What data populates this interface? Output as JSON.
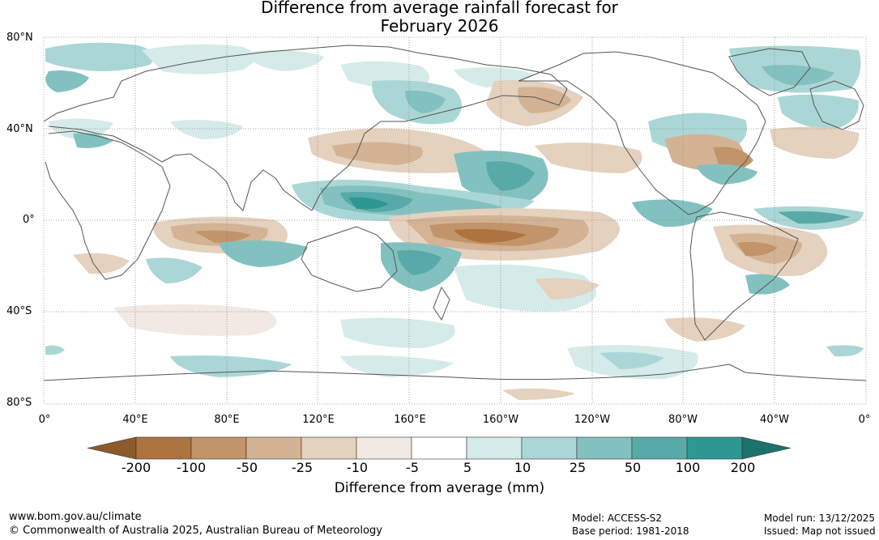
{
  "title": {
    "line1": "Difference from average rainfall forecast for",
    "line2": "February 2026"
  },
  "map": {
    "lat_labels": [
      "80°N",
      "40°N",
      "0°",
      "40°S",
      "80°S"
    ],
    "lon_labels": [
      "0°",
      "40°E",
      "80°E",
      "120°E",
      "160°E",
      "160°W",
      "120°W",
      "80°W",
      "40°W",
      "0°"
    ]
  },
  "colorbar": {
    "title": "Difference from average (mm)",
    "tick_labels": [
      "-200",
      "-100",
      "-50",
      "-25",
      "-10",
      "-5",
      "5",
      "10",
      "25",
      "50",
      "100",
      "200"
    ],
    "colors": [
      "#8c5a2b",
      "#ad7440",
      "#c1946a",
      "#d3b394",
      "#e4d1be",
      "#f1e9e2",
      "#ffffff",
      "#d5ebe9",
      "#aad7d5",
      "#82c1bf",
      "#58aaa8",
      "#2f9792",
      "#1d726d"
    ]
  },
  "footer": {
    "website": "www.bom.gov.au/climate",
    "copyright": "© Commonwealth of Australia 2025, Australian Bureau of Meteorology",
    "model": "Model: ACCESS-S2",
    "base_period": "Base period: 1981-2018",
    "model_run": "Model run: 13/12/2025",
    "issued": "Issued: Map not issued"
  }
}
